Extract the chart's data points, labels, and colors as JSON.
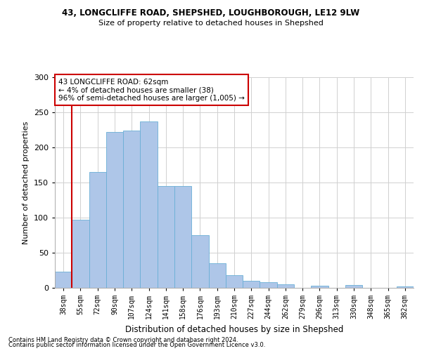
{
  "title_line1": "43, LONGCLIFFE ROAD, SHEPSHED, LOUGHBOROUGH, LE12 9LW",
  "title_line2": "Size of property relative to detached houses in Shepshed",
  "xlabel": "Distribution of detached houses by size in Shepshed",
  "ylabel": "Number of detached properties",
  "footnote1": "Contains HM Land Registry data © Crown copyright and database right 2024.",
  "footnote2": "Contains public sector information licensed under the Open Government Licence v3.0.",
  "categories": [
    "38sqm",
    "55sqm",
    "72sqm",
    "90sqm",
    "107sqm",
    "124sqm",
    "141sqm",
    "158sqm",
    "176sqm",
    "193sqm",
    "210sqm",
    "227sqm",
    "244sqm",
    "262sqm",
    "279sqm",
    "296sqm",
    "313sqm",
    "330sqm",
    "348sqm",
    "365sqm",
    "382sqm"
  ],
  "values": [
    23,
    97,
    165,
    222,
    224,
    237,
    145,
    145,
    75,
    35,
    18,
    10,
    8,
    5,
    0,
    3,
    0,
    4,
    0,
    0,
    2
  ],
  "bar_color": "#aec6e8",
  "bar_edge_color": "#6aafd6",
  "vline_x": 1.0,
  "vline_color": "#cc0000",
  "annotation_text": "43 LONGCLIFFE ROAD: 62sqm\n← 4% of detached houses are smaller (38)\n96% of semi-detached houses are larger (1,005) →",
  "annotation_box_color": "#ffffff",
  "annotation_box_edge": "#cc0000",
  "ylim": [
    0,
    300
  ],
  "yticks": [
    0,
    50,
    100,
    150,
    200,
    250,
    300
  ],
  "background_color": "#ffffff",
  "grid_color": "#d0d0d0"
}
